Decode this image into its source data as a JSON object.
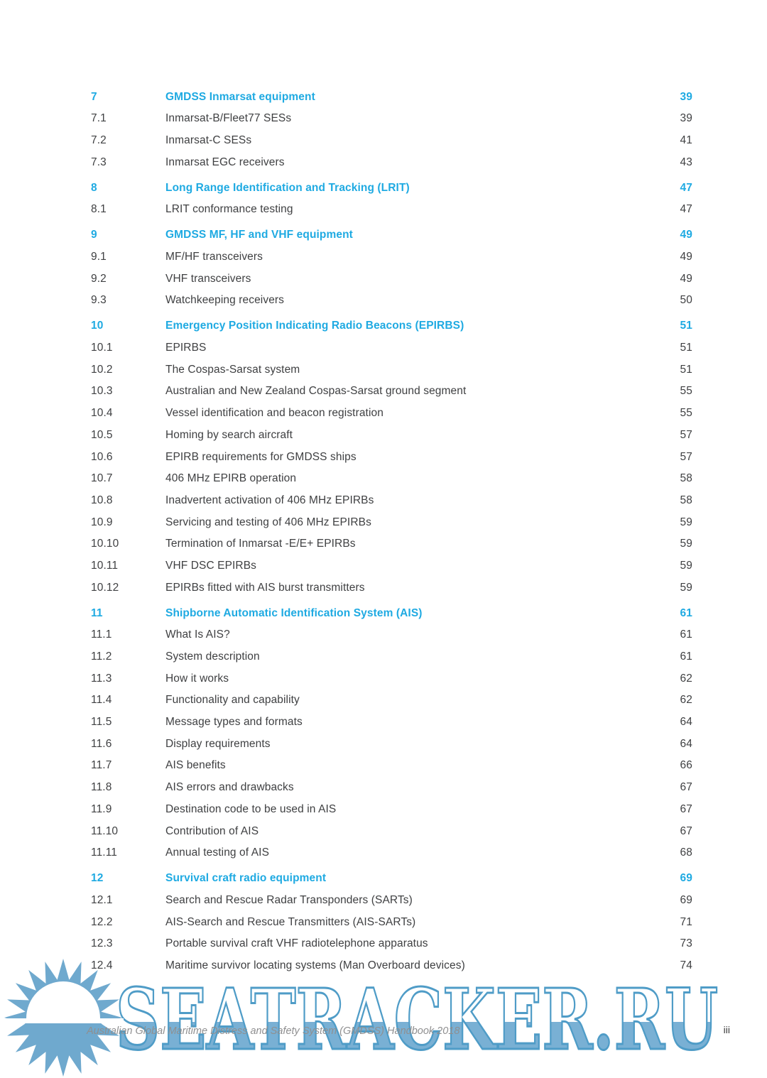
{
  "colors": {
    "accent_cyan": "#1faae2",
    "body_text": "#3f4042",
    "watermark_fill": "#79b0d4",
    "watermark_stroke": "#4f9cc7",
    "sun_blue": "#6fa9ce",
    "footer_gray": "#8f8f90"
  },
  "watermark": {
    "text": "SEATRACKER.RU",
    "icon": "sun-icon"
  },
  "footer": {
    "text": "Australian Global Maritime Distress and Safety System (GMDSS) Handbook 2018",
    "page_number": "iii"
  },
  "toc": {
    "rows": [
      {
        "num": "7",
        "title": "GMDSS Inmarsat equipment",
        "page": "39",
        "heading": true
      },
      {
        "num": "7.1",
        "title": "Inmarsat-B/Fleet77 SESs",
        "page": "39"
      },
      {
        "num": "7.2",
        "title": "Inmarsat-C SESs",
        "page": "41"
      },
      {
        "num": "7.3",
        "title": "Inmarsat EGC receivers",
        "page": "43"
      },
      {
        "num": "8",
        "title": "Long Range Identification and Tracking (LRIT)",
        "page": "47",
        "heading": true
      },
      {
        "num": "8.1",
        "title": "LRIT conformance testing",
        "page": "47"
      },
      {
        "num": "9",
        "title": "GMDSS MF, HF and VHF equipment",
        "page": "49",
        "heading": true
      },
      {
        "num": "9.1",
        "title": "MF/HF transceivers",
        "page": "49"
      },
      {
        "num": "9.2",
        "title": "VHF transceivers",
        "page": "49"
      },
      {
        "num": "9.3",
        "title": "Watchkeeping receivers",
        "page": "50"
      },
      {
        "num": "10",
        "title": "Emergency Position Indicating Radio Beacons (EPIRBS)",
        "page": "51",
        "heading": true
      },
      {
        "num": "10.1",
        "title": "EPIRBS",
        "page": "51"
      },
      {
        "num": "10.2",
        "title": "The Cospas-Sarsat system",
        "page": "51"
      },
      {
        "num": "10.3",
        "title": "Australian and New Zealand Cospas-Sarsat ground segment",
        "page": "55"
      },
      {
        "num": "10.4",
        "title": "Vessel identification and beacon registration",
        "page": "55"
      },
      {
        "num": "10.5",
        "title": "Homing by search aircraft",
        "page": "57"
      },
      {
        "num": "10.6",
        "title": "EPIRB requirements for GMDSS ships",
        "page": "57"
      },
      {
        "num": "10.7",
        "title": "406 MHz EPIRB operation",
        "page": "58"
      },
      {
        "num": "10.8",
        "title": "Inadvertent activation of 406 MHz EPIRBs",
        "page": "58"
      },
      {
        "num": "10.9",
        "title": "Servicing and testing of 406 MHz EPIRBs",
        "page": "59"
      },
      {
        "num": "10.10",
        "title": "Termination of Inmarsat -E/E+ EPIRBs",
        "page": "59"
      },
      {
        "num": "10.11",
        "title": "VHF DSC EPIRBs",
        "page": "59"
      },
      {
        "num": "10.12",
        "title": "EPIRBs fitted with AIS burst transmitters",
        "page": "59"
      },
      {
        "num": "11",
        "title": "Shipborne Automatic Identification System (AIS)",
        "page": "61",
        "heading": true
      },
      {
        "num": "11.1",
        "title": "What Is AIS?",
        "page": "61"
      },
      {
        "num": "11.2",
        "title": "System description",
        "page": "61"
      },
      {
        "num": "11.3",
        "title": "How it works",
        "page": "62"
      },
      {
        "num": "11.4",
        "title": "Functionality and capability",
        "page": "62"
      },
      {
        "num": "11.5",
        "title": "Message types and formats",
        "page": "64"
      },
      {
        "num": "11.6",
        "title": "Display requirements",
        "page": "64"
      },
      {
        "num": "11.7",
        "title": "AIS benefits",
        "page": "66"
      },
      {
        "num": "11.8",
        "title": "AIS errors and drawbacks",
        "page": "67"
      },
      {
        "num": "11.9",
        "title": "Destination code to be used in AIS",
        "page": "67"
      },
      {
        "num": "11.10",
        "title": "Contribution of AIS",
        "page": "67"
      },
      {
        "num": "11.11",
        "title": "Annual testing of AIS",
        "page": "68"
      },
      {
        "num": "12",
        "title": "Survival craft radio equipment",
        "page": "69",
        "heading": true
      },
      {
        "num": "12.1",
        "title": "Search and Rescue Radar Transponders (SARTs)",
        "page": "69"
      },
      {
        "num": "12.2",
        "title": "AIS-Search and Rescue Transmitters (AIS-SARTs)",
        "page": "71"
      },
      {
        "num": "12.3",
        "title": "Portable survival craft VHF radiotelephone apparatus",
        "page": "73"
      },
      {
        "num": "12.4",
        "title": "Maritime survivor locating systems (Man Overboard devices)",
        "page": "74"
      }
    ]
  }
}
